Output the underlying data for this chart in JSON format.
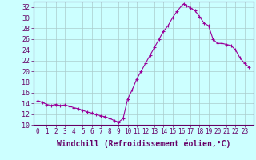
{
  "x": [
    0,
    0.5,
    1,
    1.5,
    2,
    2.5,
    3,
    3.5,
    4,
    4.5,
    5,
    5.5,
    6,
    6.5,
    7,
    7.5,
    8,
    8.5,
    9,
    9.5,
    10,
    10.5,
    11,
    11.5,
    12,
    12.5,
    13,
    13.5,
    14,
    14.5,
    15,
    15.5,
    16,
    16.25,
    16.5,
    17,
    17.5,
    18,
    18.5,
    19,
    19.5,
    20,
    20.5,
    21,
    21.5,
    22,
    22.5,
    23,
    23.5
  ],
  "y": [
    14.5,
    14.2,
    13.8,
    13.6,
    13.8,
    13.6,
    13.7,
    13.5,
    13.2,
    13.0,
    12.7,
    12.4,
    12.2,
    11.9,
    11.7,
    11.5,
    11.2,
    10.8,
    10.5,
    11.2,
    14.8,
    16.5,
    18.5,
    20.0,
    21.5,
    23.0,
    24.5,
    26.0,
    27.5,
    28.5,
    30.0,
    31.2,
    32.2,
    32.6,
    32.3,
    31.8,
    31.3,
    30.2,
    29.0,
    28.5,
    26.0,
    25.2,
    25.2,
    25.0,
    24.8,
    24.0,
    22.5,
    21.5,
    20.8
  ],
  "line_color": "#990099",
  "marker": "+",
  "marker_size": 3,
  "marker_lw": 0.8,
  "line_width": 0.8,
  "bg_color": "#ccffff",
  "grid_color": "#aacccc",
  "xlabel": "Windchill (Refroidissement éolien,°C)",
  "xlabel_fontsize": 7,
  "ylabel_ticks": [
    10,
    12,
    14,
    16,
    18,
    20,
    22,
    24,
    26,
    28,
    30,
    32
  ],
  "xtick_labels": [
    "0",
    "1",
    "2",
    "3",
    "4",
    "5",
    "6",
    "7",
    "8",
    "9",
    "10",
    "11",
    "12",
    "13",
    "14",
    "15",
    "16",
    "17",
    "18",
    "19",
    "20",
    "21",
    "22",
    "23"
  ],
  "xlim": [
    -0.5,
    24
  ],
  "ylim": [
    10,
    33
  ],
  "tick_color": "#660066",
  "label_color": "#660066",
  "tick_fontsize": 5.5,
  "ytick_fontsize": 6
}
